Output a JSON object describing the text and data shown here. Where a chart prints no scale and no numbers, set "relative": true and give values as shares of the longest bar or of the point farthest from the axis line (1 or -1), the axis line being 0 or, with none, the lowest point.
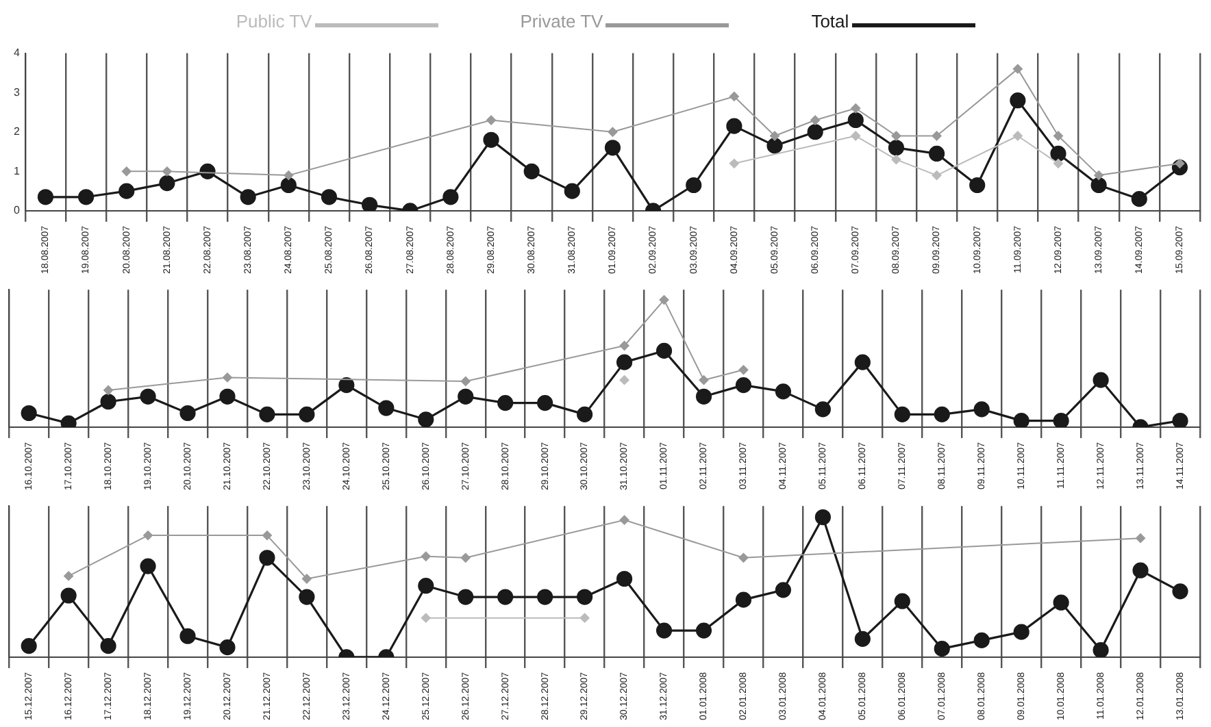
{
  "chart_data": [
    {
      "type": "line",
      "categories": [
        "18.08.2007",
        "19.08.2007",
        "20.08.2007",
        "21.08.2007",
        "22.08.2007",
        "23.08.2007",
        "24.08.2007",
        "25.08.2007",
        "26.08.2007",
        "27.08.2007",
        "28.08.2007",
        "29.08.2007",
        "30.08.2007",
        "31.08.2007",
        "01.09.2007",
        "02.09.2007",
        "03.09.2007",
        "04.09.2007",
        "05.09.2007",
        "06.09.2007",
        "07.09.2007",
        "08.09.2007",
        "09.09.2007",
        "10.09.2007",
        "11.09.2007",
        "12.09.2007",
        "13.09.2007",
        "14.09.2007",
        "15.09.2007"
      ],
      "series": [
        {
          "name": "Public TV",
          "color": "#bbbbbb",
          "marker": "diamond",
          "values": [
            null,
            null,
            null,
            null,
            null,
            null,
            null,
            null,
            null,
            null,
            null,
            null,
            null,
            null,
            null,
            null,
            null,
            1.2,
            null,
            null,
            1.9,
            1.3,
            0.9,
            null,
            1.9,
            1.2,
            null,
            null,
            null
          ]
        },
        {
          "name": "Private TV",
          "color": "#999999",
          "marker": "diamond",
          "values": [
            null,
            null,
            1.0,
            1.0,
            null,
            null,
            0.9,
            null,
            null,
            null,
            null,
            2.3,
            null,
            null,
            2.0,
            null,
            null,
            2.9,
            1.9,
            2.3,
            2.6,
            1.9,
            1.9,
            null,
            3.6,
            1.9,
            0.9,
            null,
            1.2
          ]
        },
        {
          "name": "Total",
          "color": "#1a1a1a",
          "marker": "circle",
          "values": [
            0.35,
            0.35,
            0.5,
            0.7,
            1.0,
            0.35,
            0.65,
            0.35,
            0.15,
            0,
            0.35,
            1.8,
            1.0,
            0.5,
            1.6,
            0,
            0.65,
            2.15,
            1.65,
            2.0,
            2.3,
            1.6,
            1.45,
            0.65,
            2.8,
            1.45,
            0.65,
            0.3,
            1.1
          ]
        }
      ],
      "ylim": [
        0,
        4
      ],
      "yticks": [
        0,
        1,
        2,
        3,
        4
      ],
      "grid": "x",
      "legend": "top"
    },
    {
      "type": "line",
      "relative": true,
      "tick_labels": "x",
      "grid": "x",
      "categories": [
        "16.10.2007",
        "17.10.2007",
        "18.10.2007",
        "19.10.2007",
        "20.10.2007",
        "21.10.2007",
        "22.10.2007",
        "23.10.2007",
        "24.10.2007",
        "25.10.2007",
        "26.10.2007",
        "27.10.2007",
        "28.10.2007",
        "29.10.2007",
        "30.10.2007",
        "31.10.2007",
        "01.11.2007",
        "02.11.2007",
        "03.11.2007",
        "04.11.2007",
        "05.11.2007",
        "06.11.2007",
        "07.11.2007",
        "08.11.2007",
        "09.11.2007",
        "10.11.2007",
        "11.11.2007",
        "12.11.2007",
        "13.11.2007",
        "14.11.2007"
      ],
      "series": [
        {
          "color": "#bbbbbb",
          "marker": "diamond",
          "values": [
            null,
            null,
            null,
            null,
            null,
            null,
            null,
            null,
            null,
            null,
            null,
            null,
            null,
            null,
            null,
            0.37,
            null,
            null,
            null,
            null,
            null,
            null,
            null,
            null,
            null,
            null,
            null,
            null,
            null,
            null
          ]
        },
        {
          "color": "#999999",
          "marker": "diamond",
          "values": [
            null,
            null,
            0.29,
            null,
            null,
            0.39,
            null,
            null,
            null,
            null,
            null,
            0.36,
            null,
            null,
            null,
            0.64,
            1,
            0.37,
            0.45,
            null,
            null,
            null,
            null,
            null,
            null,
            null,
            null,
            null,
            null,
            null
          ]
        },
        {
          "color": "#1a1a1a",
          "marker": "circle",
          "values": [
            0.11,
            0.03,
            0.2,
            0.24,
            0.11,
            0.24,
            0.1,
            0.1,
            0.33,
            0.15,
            0.06,
            0.24,
            0.19,
            0.19,
            0.1,
            0.51,
            0.6,
            0.24,
            0.33,
            0.28,
            0.14,
            0.51,
            0.1,
            0.1,
            0.14,
            0.05,
            0.05,
            0.37,
            0,
            0.05
          ]
        }
      ]
    },
    {
      "type": "line",
      "relative": true,
      "tick_labels": "x",
      "grid": "x",
      "categories": [
        "15.12.2007",
        "16.12.2007",
        "17.12.2007",
        "18.12.2007",
        "19.12.2007",
        "20.12.2007",
        "21.12.2007",
        "22.12.2007",
        "23.12.2007",
        "24.12.2007",
        "25.12.2007",
        "26.12.2007",
        "27.12.2007",
        "28.12.2007",
        "29.12.2007",
        "30.12.2007",
        "31.12.2007",
        "01.01.2008",
        "02.01.2008",
        "03.01.2008",
        "04.01.2008",
        "05.01.2008",
        "06.01.2008",
        "07.01.2008",
        "08.01.2008",
        "09.01.2008",
        "10.01.2008",
        "11.01.2008",
        "12.01.2008",
        "13.01.2008"
      ],
      "series": [
        {
          "color": "#bbbbbb",
          "marker": "diamond",
          "values": [
            null,
            null,
            null,
            null,
            null,
            null,
            null,
            null,
            null,
            null,
            0.28,
            null,
            null,
            null,
            0.28,
            null,
            null,
            null,
            null,
            null,
            null,
            null,
            null,
            null,
            null,
            null,
            null,
            null,
            null,
            null
          ]
        },
        {
          "color": "#999999",
          "marker": "diamond",
          "values": [
            null,
            0.58,
            null,
            0.87,
            null,
            null,
            0.87,
            0.56,
            null,
            null,
            0.72,
            0.71,
            null,
            null,
            null,
            0.98,
            null,
            null,
            0.71,
            null,
            null,
            null,
            null,
            null,
            null,
            null,
            null,
            null,
            0.85,
            null
          ]
        },
        {
          "color": "#1a1a1a",
          "marker": "circle",
          "values": [
            0.08,
            0.44,
            0.08,
            0.65,
            0.15,
            0.07,
            0.71,
            0.43,
            0,
            0,
            0.51,
            0.43,
            0.43,
            0.43,
            0.43,
            0.56,
            0.19,
            0.19,
            0.41,
            0.48,
            1,
            0.13,
            0.4,
            0.06,
            0.12,
            0.18,
            0.39,
            0.05,
            0.62,
            0.47
          ]
        }
      ]
    }
  ]
}
